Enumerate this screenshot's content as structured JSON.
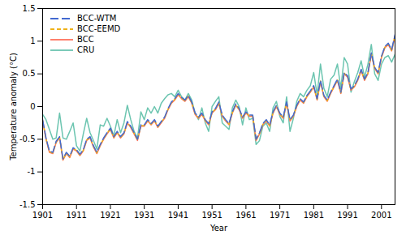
{
  "chart_data": {
    "type": "line",
    "xlabel": "Year",
    "ylabel": "Temperature anomaly (°C)",
    "xlim": [
      1901,
      2005
    ],
    "ylim": [
      -1.5,
      1.5
    ],
    "xticks": [
      1901,
      1911,
      1921,
      1931,
      1941,
      1951,
      1961,
      1971,
      1981,
      1991,
      2001
    ],
    "yticks": [
      -1.5,
      -1,
      -0.5,
      0,
      0.5,
      1,
      1.5
    ],
    "grid": false,
    "legend": "upper left",
    "x": [
      1901,
      1902,
      1903,
      1904,
      1905,
      1906,
      1907,
      1908,
      1909,
      1910,
      1911,
      1912,
      1913,
      1914,
      1915,
      1916,
      1917,
      1918,
      1919,
      1920,
      1921,
      1922,
      1923,
      1924,
      1925,
      1926,
      1927,
      1928,
      1929,
      1930,
      1931,
      1932,
      1933,
      1934,
      1935,
      1936,
      1937,
      1938,
      1939,
      1940,
      1941,
      1942,
      1943,
      1944,
      1945,
      1946,
      1947,
      1948,
      1949,
      1950,
      1951,
      1952,
      1953,
      1954,
      1955,
      1956,
      1957,
      1958,
      1959,
      1960,
      1961,
      1962,
      1963,
      1964,
      1965,
      1966,
      1967,
      1968,
      1969,
      1970,
      1971,
      1972,
      1973,
      1974,
      1975,
      1976,
      1977,
      1978,
      1979,
      1980,
      1981,
      1982,
      1983,
      1984,
      1985,
      1986,
      1987,
      1988,
      1989,
      1990,
      1991,
      1992,
      1993,
      1994,
      1995,
      1996,
      1997,
      1998,
      1999,
      2000,
      2001,
      2002,
      2003,
      2004,
      2005
    ],
    "series": [
      {
        "name": "BCC-WTM",
        "line_style": "longdash",
        "values": [
          -0.2,
          -0.48,
          -0.68,
          -0.7,
          -0.53,
          -0.46,
          -0.8,
          -0.7,
          -0.76,
          -0.63,
          -0.66,
          -0.73,
          -0.66,
          -0.5,
          -0.46,
          -0.6,
          -0.7,
          -0.58,
          -0.48,
          -0.4,
          -0.33,
          -0.46,
          -0.38,
          -0.46,
          -0.4,
          -0.23,
          -0.3,
          -0.4,
          -0.5,
          -0.28,
          -0.28,
          -0.2,
          -0.26,
          -0.2,
          -0.3,
          -0.23,
          -0.16,
          -0.03,
          0.07,
          0.12,
          0.2,
          0.14,
          0.1,
          0.17,
          0.07,
          -0.1,
          -0.16,
          -0.1,
          -0.2,
          -0.26,
          -0.08,
          -0.03,
          0.07,
          -0.13,
          -0.2,
          -0.26,
          -0.08,
          0.04,
          -0.03,
          -0.16,
          -0.08,
          -0.13,
          -0.13,
          -0.5,
          -0.4,
          -0.26,
          -0.2,
          -0.28,
          -0.08,
          0.02,
          -0.1,
          -0.16,
          0.07,
          -0.2,
          -0.13,
          0.02,
          0.12,
          0.07,
          0.17,
          0.24,
          0.32,
          0.12,
          0.4,
          0.17,
          0.1,
          0.22,
          0.32,
          0.42,
          0.22,
          0.52,
          0.47,
          0.27,
          0.32,
          0.42,
          0.57,
          0.42,
          0.52,
          0.82,
          0.6,
          0.52,
          0.77,
          0.92,
          0.97,
          0.87,
          1.1
        ]
      },
      {
        "name": "BCC-EEMD",
        "line_style": "dashed",
        "values": [
          -0.21,
          -0.49,
          -0.69,
          -0.71,
          -0.54,
          -0.47,
          -0.81,
          -0.71,
          -0.77,
          -0.64,
          -0.67,
          -0.74,
          -0.67,
          -0.51,
          -0.47,
          -0.61,
          -0.71,
          -0.59,
          -0.49,
          -0.41,
          -0.34,
          -0.47,
          -0.39,
          -0.47,
          -0.41,
          -0.24,
          -0.31,
          -0.41,
          -0.51,
          -0.29,
          -0.29,
          -0.21,
          -0.27,
          -0.21,
          -0.31,
          -0.24,
          -0.17,
          -0.04,
          0.06,
          0.11,
          0.19,
          0.13,
          0.09,
          0.16,
          0.06,
          -0.11,
          -0.17,
          -0.11,
          -0.21,
          -0.27,
          -0.09,
          -0.04,
          0.06,
          -0.14,
          -0.21,
          -0.27,
          -0.09,
          0.03,
          -0.04,
          -0.17,
          -0.09,
          -0.14,
          -0.14,
          -0.51,
          -0.41,
          -0.27,
          -0.21,
          -0.29,
          -0.09,
          0.01,
          -0.11,
          -0.17,
          0.06,
          -0.21,
          -0.14,
          0.01,
          0.11,
          0.06,
          0.16,
          0.23,
          0.31,
          0.11,
          0.39,
          0.16,
          0.09,
          0.21,
          0.31,
          0.41,
          0.21,
          0.51,
          0.46,
          0.26,
          0.31,
          0.41,
          0.56,
          0.41,
          0.51,
          0.81,
          0.59,
          0.51,
          0.76,
          0.91,
          0.96,
          0.86,
          1.09
        ]
      },
      {
        "name": "BCC",
        "line_style": "solid",
        "values": [
          -0.22,
          -0.5,
          -0.7,
          -0.72,
          -0.55,
          -0.48,
          -0.82,
          -0.72,
          -0.78,
          -0.65,
          -0.68,
          -0.75,
          -0.68,
          -0.52,
          -0.48,
          -0.62,
          -0.72,
          -0.6,
          -0.5,
          -0.42,
          -0.35,
          -0.48,
          -0.4,
          -0.48,
          -0.42,
          -0.25,
          -0.32,
          -0.42,
          -0.52,
          -0.3,
          -0.3,
          -0.22,
          -0.28,
          -0.22,
          -0.32,
          -0.25,
          -0.18,
          -0.05,
          0.05,
          0.1,
          0.18,
          0.12,
          0.08,
          0.15,
          0.05,
          -0.12,
          -0.18,
          -0.12,
          -0.22,
          -0.28,
          -0.1,
          -0.05,
          0.05,
          -0.15,
          -0.22,
          -0.28,
          -0.1,
          0.02,
          -0.05,
          -0.18,
          -0.1,
          -0.15,
          -0.15,
          -0.52,
          -0.42,
          -0.28,
          -0.22,
          -0.3,
          -0.1,
          0.0,
          -0.12,
          -0.18,
          0.05,
          -0.22,
          -0.15,
          0.0,
          0.1,
          0.05,
          0.15,
          0.22,
          0.3,
          0.1,
          0.38,
          0.15,
          0.08,
          0.2,
          0.3,
          0.4,
          0.2,
          0.5,
          0.45,
          0.25,
          0.3,
          0.4,
          0.55,
          0.4,
          0.5,
          0.8,
          0.58,
          0.5,
          0.75,
          0.9,
          0.95,
          0.85,
          1.08
        ]
      },
      {
        "name": "CRU",
        "line_style": "solid",
        "values": [
          -0.12,
          -0.2,
          -0.35,
          -0.5,
          -0.48,
          -0.1,
          -0.48,
          -0.5,
          -0.38,
          -0.25,
          -0.6,
          -0.68,
          -0.42,
          -0.18,
          -0.4,
          -0.52,
          -0.65,
          -0.28,
          -0.3,
          -0.18,
          -0.3,
          -0.45,
          -0.2,
          -0.4,
          -0.25,
          0.02,
          -0.2,
          -0.38,
          -0.48,
          -0.08,
          -0.2,
          -0.02,
          -0.1,
          0.0,
          -0.1,
          0.05,
          0.12,
          0.18,
          0.2,
          0.15,
          0.25,
          0.15,
          0.1,
          0.2,
          0.1,
          -0.1,
          -0.2,
          -0.02,
          -0.25,
          -0.38,
          0.0,
          0.08,
          0.15,
          -0.25,
          -0.3,
          -0.35,
          -0.02,
          0.1,
          0.0,
          -0.28,
          -0.02,
          -0.2,
          -0.18,
          -0.58,
          -0.52,
          -0.3,
          -0.25,
          -0.38,
          -0.02,
          0.08,
          -0.15,
          -0.25,
          0.15,
          -0.38,
          -0.18,
          0.08,
          0.2,
          0.15,
          0.25,
          0.32,
          0.52,
          0.18,
          0.65,
          0.28,
          0.15,
          0.42,
          0.48,
          0.65,
          0.28,
          0.75,
          0.65,
          0.22,
          0.38,
          0.52,
          0.7,
          0.45,
          0.65,
          0.95,
          0.5,
          0.4,
          0.65,
          0.75,
          0.78,
          0.68,
          0.8
        ]
      }
    ]
  }
}
